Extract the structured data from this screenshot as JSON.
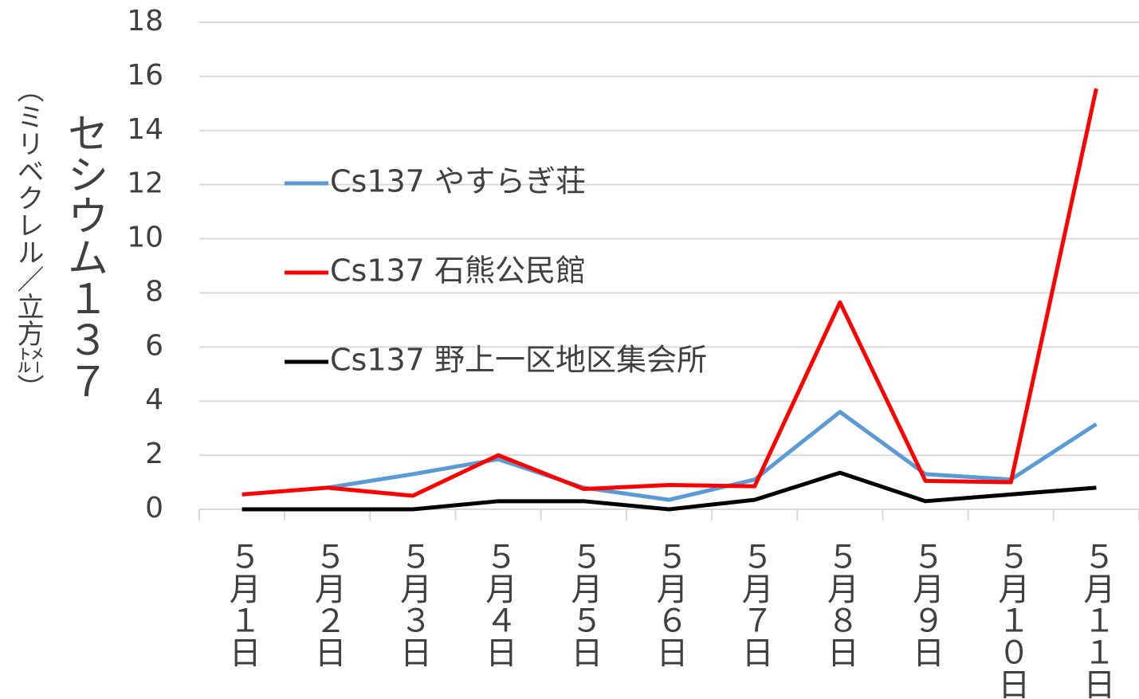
{
  "chart_data": {
    "type": "line",
    "y_label": "セシウム１３７",
    "y_unit": "（ミリベクレル／立方㍍）",
    "categories": [
      "５月１日",
      "５月２日",
      "５月３日",
      "５月４日",
      "５月５日",
      "５月６日",
      "５月７日",
      "５月８日",
      "５月９日",
      "５月１０日",
      "５月１１日"
    ],
    "series": [
      {
        "name": "Cs137 やすらぎ荘",
        "color": "#5b9bd5",
        "values": [
          null,
          0.8,
          1.3,
          1.85,
          0.8,
          0.35,
          1.1,
          3.6,
          1.3,
          1.1,
          3.15
        ]
      },
      {
        "name": "Cs137 石熊公民館",
        "color": "#ff0000",
        "values": [
          0.55,
          0.8,
          0.5,
          2.0,
          0.75,
          0.9,
          0.85,
          7.65,
          1.05,
          1.0,
          15.55
        ]
      },
      {
        "name": "Cs137 野上一区地区集会所",
        "color": "#000000",
        "values": [
          0,
          0,
          0,
          0.3,
          0.3,
          0,
          0.35,
          1.35,
          0.3,
          0.55,
          0.8
        ]
      }
    ],
    "ylim": [
      0,
      18
    ],
    "yticks": [
      0,
      2,
      4,
      6,
      8,
      10,
      12,
      14,
      16,
      18
    ],
    "grid": true,
    "legend": "upper left"
  }
}
